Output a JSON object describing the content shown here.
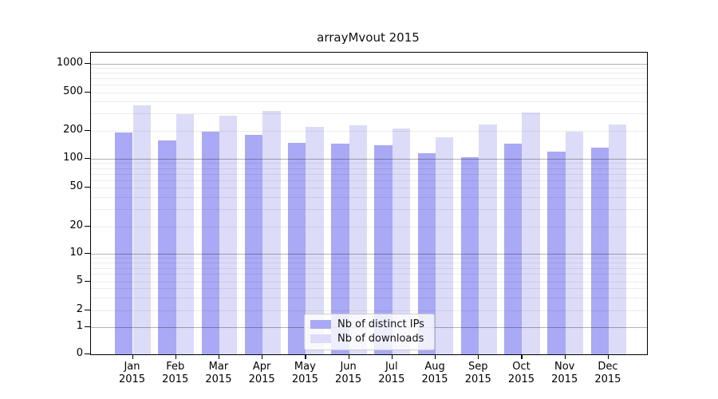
{
  "figure": {
    "title": "arrayMvout 2015"
  },
  "chart_data": {
    "type": "bar",
    "title": "arrayMvout 2015",
    "xlabel": "",
    "ylabel": "",
    "yscale": "symlog",
    "grid": true,
    "legend_position": "lower center",
    "yticks": [
      0,
      1,
      2,
      5,
      10,
      20,
      50,
      100,
      200,
      500,
      1000
    ],
    "ylim": [
      0,
      1320
    ],
    "categories": [
      {
        "month": "Jan",
        "year": "2015"
      },
      {
        "month": "Feb",
        "year": "2015"
      },
      {
        "month": "Mar",
        "year": "2015"
      },
      {
        "month": "Apr",
        "year": "2015"
      },
      {
        "month": "May",
        "year": "2015"
      },
      {
        "month": "Jun",
        "year": "2015"
      },
      {
        "month": "Jul",
        "year": "2015"
      },
      {
        "month": "Aug",
        "year": "2015"
      },
      {
        "month": "Sep",
        "year": "2015"
      },
      {
        "month": "Oct",
        "year": "2015"
      },
      {
        "month": "Nov",
        "year": "2015"
      },
      {
        "month": "Dec",
        "year": "2015"
      }
    ],
    "series": [
      {
        "name": "Nb of distinct IPs",
        "color": "#a9a9f5",
        "values": [
          192,
          158,
          196,
          181,
          149,
          144,
          139,
          115,
          105,
          144,
          119,
          131
        ]
      },
      {
        "name": "Nb of downloads",
        "color": "#dcdcf8",
        "values": [
          366,
          295,
          287,
          318,
          216,
          225,
          211,
          168,
          230,
          307,
          196,
          231
        ]
      }
    ]
  }
}
